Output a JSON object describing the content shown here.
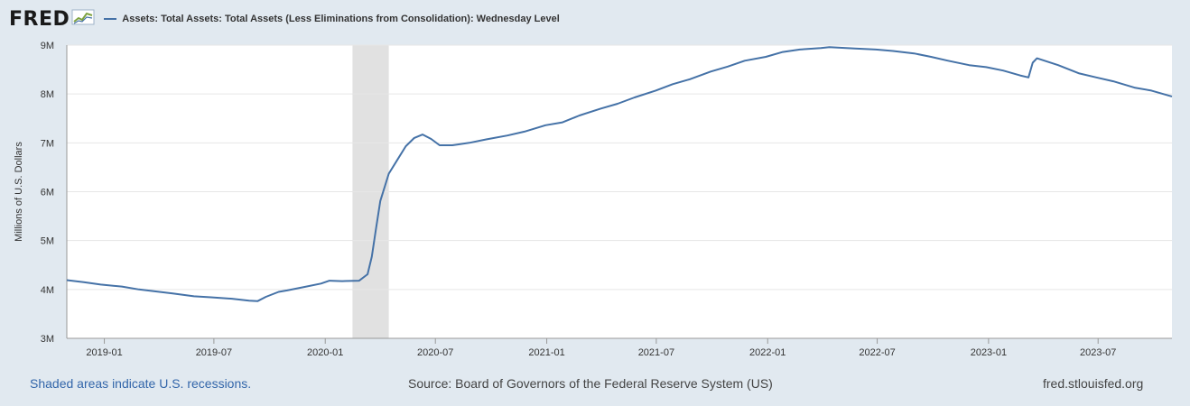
{
  "header": {
    "logo_text": "FRED",
    "logo_icon": "trend-chart-icon",
    "legend_label": "Assets: Total Assets: Total Assets (Less Eliminations from Consolidation): Wednesday Level"
  },
  "footer": {
    "recession_note": "Shaded areas indicate U.S. recessions.",
    "source": "Source: Board of Governors of the Federal Reserve System (US)",
    "site": "fred.stlouisfed.org"
  },
  "colors": {
    "line": "#4572a7",
    "recession": "#e1e1e1",
    "grid": "#e6e6e6",
    "background": "#e1e9f0",
    "plot": "#ffffff"
  },
  "chart_data": {
    "type": "line",
    "title": "",
    "xlabel": "",
    "ylabel": "Millions of U.S. Dollars",
    "ylim": [
      3000000,
      9000000
    ],
    "xlim": [
      "2018-10-31",
      "2023-10-31"
    ],
    "y_ticks": [
      3000000,
      4000000,
      5000000,
      6000000,
      7000000,
      8000000,
      9000000
    ],
    "y_tick_labels": [
      "3M",
      "4M",
      "5M",
      "6M",
      "7M",
      "8M",
      "9M"
    ],
    "x_ticks": [
      "2019-01",
      "2019-07",
      "2020-01",
      "2020-07",
      "2021-01",
      "2021-07",
      "2022-01",
      "2022-07",
      "2023-01",
      "2023-07"
    ],
    "grid": true,
    "legend": "top-left",
    "recessions": [
      {
        "start": "2020-02-15",
        "end": "2020-04-15"
      }
    ],
    "series": [
      {
        "name": "Assets: Total Assets: Total Assets (Less Eliminations from Consolidation): Wednesday Level",
        "points": [
          [
            "2018-10-31",
            4190000
          ],
          [
            "2018-11-28",
            4150000
          ],
          [
            "2018-12-26",
            4100000
          ],
          [
            "2019-01-30",
            4060000
          ],
          [
            "2019-02-27",
            4000000
          ],
          [
            "2019-03-27",
            3960000
          ],
          [
            "2019-04-24",
            3920000
          ],
          [
            "2019-05-29",
            3860000
          ],
          [
            "2019-06-26",
            3840000
          ],
          [
            "2019-07-31",
            3810000
          ],
          [
            "2019-08-28",
            3770000
          ],
          [
            "2019-09-11",
            3760000
          ],
          [
            "2019-09-25",
            3850000
          ],
          [
            "2019-10-16",
            3950000
          ],
          [
            "2019-10-30",
            3980000
          ],
          [
            "2019-11-27",
            4050000
          ],
          [
            "2019-12-25",
            4120000
          ],
          [
            "2020-01-08",
            4180000
          ],
          [
            "2020-01-29",
            4170000
          ],
          [
            "2020-02-26",
            4180000
          ],
          [
            "2020-03-11",
            4310000
          ],
          [
            "2020-03-18",
            4670000
          ],
          [
            "2020-03-25",
            5250000
          ],
          [
            "2020-04-01",
            5810000
          ],
          [
            "2020-04-15",
            6370000
          ],
          [
            "2020-04-29",
            6650000
          ],
          [
            "2020-05-13",
            6930000
          ],
          [
            "2020-05-27",
            7100000
          ],
          [
            "2020-06-10",
            7170000
          ],
          [
            "2020-06-24",
            7080000
          ],
          [
            "2020-07-08",
            6950000
          ],
          [
            "2020-07-29",
            6950000
          ],
          [
            "2020-08-26",
            7000000
          ],
          [
            "2020-09-23",
            7070000
          ],
          [
            "2020-10-28",
            7150000
          ],
          [
            "2020-11-25",
            7230000
          ],
          [
            "2020-12-30",
            7360000
          ],
          [
            "2021-01-27",
            7420000
          ],
          [
            "2021-02-24",
            7560000
          ],
          [
            "2021-03-31",
            7700000
          ],
          [
            "2021-04-28",
            7800000
          ],
          [
            "2021-05-26",
            7930000
          ],
          [
            "2021-06-30",
            8070000
          ],
          [
            "2021-07-28",
            8200000
          ],
          [
            "2021-08-25",
            8300000
          ],
          [
            "2021-09-29",
            8460000
          ],
          [
            "2021-10-27",
            8560000
          ],
          [
            "2021-11-24",
            8680000
          ],
          [
            "2021-12-29",
            8760000
          ],
          [
            "2022-01-26",
            8860000
          ],
          [
            "2022-02-23",
            8910000
          ],
          [
            "2022-03-30",
            8940000
          ],
          [
            "2022-04-13",
            8960000
          ],
          [
            "2022-05-25",
            8930000
          ],
          [
            "2022-06-29",
            8910000
          ],
          [
            "2022-07-27",
            8880000
          ],
          [
            "2022-08-31",
            8830000
          ],
          [
            "2022-09-28",
            8760000
          ],
          [
            "2022-10-26",
            8680000
          ],
          [
            "2022-11-30",
            8590000
          ],
          [
            "2022-12-28",
            8550000
          ],
          [
            "2023-01-25",
            8480000
          ],
          [
            "2023-02-22",
            8380000
          ],
          [
            "2023-03-08",
            8340000
          ],
          [
            "2023-03-15",
            8640000
          ],
          [
            "2023-03-22",
            8730000
          ],
          [
            "2023-04-26",
            8590000
          ],
          [
            "2023-05-31",
            8420000
          ],
          [
            "2023-06-28",
            8340000
          ],
          [
            "2023-07-26",
            8260000
          ],
          [
            "2023-08-30",
            8130000
          ],
          [
            "2023-09-27",
            8070000
          ],
          [
            "2023-10-31",
            7950000
          ]
        ]
      }
    ]
  }
}
